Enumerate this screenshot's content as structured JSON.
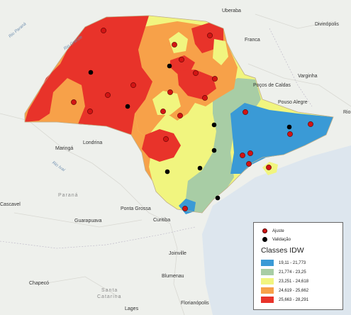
{
  "colors": {
    "class1": "#3a9ad6",
    "class2": "#a8cda5",
    "class3": "#f1f57f",
    "class4": "#f7a149",
    "class5": "#e8332a",
    "ajuste": "#d11414",
    "validacao": "#000000"
  },
  "places": {
    "uberaba": "Uberaba",
    "divinopolis": "Divinópolis",
    "franca": "Franca",
    "varginha": "Varginha",
    "pocos_de_caldas": "Poços de Caldas",
    "pouso_alegre": "Pouso Alegre",
    "rio_cut": "Rio",
    "maringa": "Maringá",
    "londrina": "Londrina",
    "parana": "Paraná",
    "cascavel": "Cascavel",
    "guarapuava": "Guarapuava",
    "ponta_grossa": "Ponta Grossa",
    "curitiba": "Curitiba",
    "joinville": "Joinville",
    "blumenau": "Blumenau",
    "chapeco": "Chapecó",
    "santa_catarina_1": "Santa",
    "santa_catarina_2": "Catarina",
    "lages": "Lages",
    "florianopolis": "Florianópolis",
    "rio_parana": "Rio Paraná",
    "rio_ivai": "Rio Ivaí",
    "rio_grande": "Rio Grande"
  },
  "legend": {
    "ajuste_label": "Ajuste",
    "validacao_label": "Validação",
    "title": "Classes IDW",
    "classes": [
      "19,11 - 21,773",
      "21,774 - 23,25",
      "23,251 - 24,618",
      "24,619 - 25,662",
      "25,663 - 28,291"
    ]
  }
}
